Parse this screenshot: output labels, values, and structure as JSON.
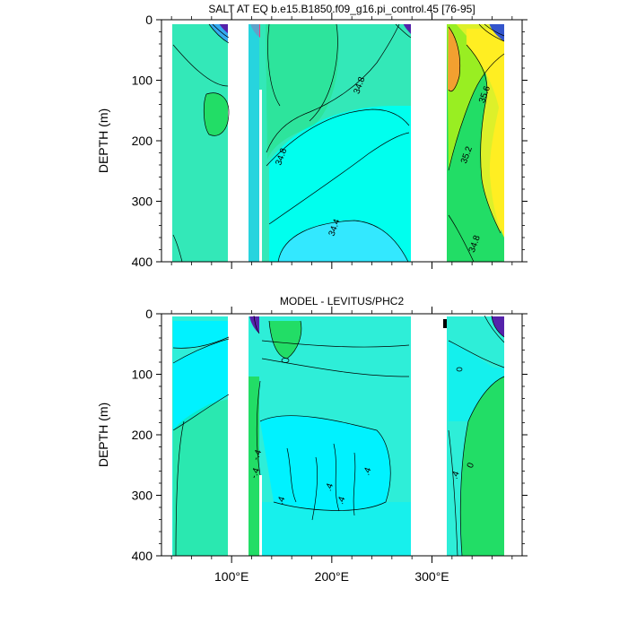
{
  "chart_data": [
    {
      "type": "contour",
      "title": "SALT AT EQ b.e15.B1850.f09_g16.pi_control.45 [76-95]",
      "xlabel": "",
      "ylabel": "DEPTH (m)",
      "xlim": [
        30,
        390
      ],
      "ylim": [
        400,
        0
      ],
      "y_ticks": [
        0,
        100,
        200,
        300,
        400
      ],
      "x_ticks": [
        100,
        200,
        300
      ],
      "x_tick_labels": [
        "100°E",
        "200°E",
        "300°E"
      ],
      "land_gaps_lon": [
        [
          97,
          118
        ],
        [
          132,
          133
        ],
        [
          280,
          315
        ]
      ],
      "contour_labels": [
        {
          "text": "34.8",
          "lon": 230,
          "depth": 110
        },
        {
          "text": "34.8",
          "lon": 152,
          "depth": 228
        },
        {
          "text": "34.4",
          "lon": 205,
          "depth": 345
        },
        {
          "text": "35.6",
          "lon": 355,
          "depth": 125
        },
        {
          "text": "35.2",
          "lon": 337,
          "depth": 225
        },
        {
          "text": "34.8",
          "lon": 345,
          "depth": 372
        }
      ],
      "colors": {
        "deep": "#00ffee",
        "mid": "#33e8b8",
        "high": "#22dd66",
        "yellow": "#ffee22",
        "orange": "#f2a030",
        "purple": "#5522aa"
      }
    },
    {
      "type": "contour",
      "title": "MODEL - LEVITUS/PHC2",
      "xlabel": "",
      "ylabel": "DEPTH (m)",
      "xlim": [
        30,
        390
      ],
      "ylim": [
        400,
        0
      ],
      "y_ticks": [
        0,
        100,
        200,
        300,
        400
      ],
      "x_ticks": [
        100,
        200,
        300
      ],
      "x_tick_labels": [
        "100°E",
        "200°E",
        "300°E"
      ],
      "land_gaps_lon": [
        [
          97,
          118
        ],
        [
          132,
          133
        ],
        [
          280,
          315
        ]
      ],
      "contour_labels": [
        {
          "text": "-.4",
          "lon": 128,
          "depth": 235
        },
        {
          "text": "-.4",
          "lon": 126,
          "depth": 265
        },
        {
          "text": ".4",
          "lon": 152,
          "depth": 310
        },
        {
          "text": ".4",
          "lon": 200,
          "depth": 288
        },
        {
          "text": ".4",
          "lon": 212,
          "depth": 310
        },
        {
          "text": ".4",
          "lon": 238,
          "depth": 262
        },
        {
          "text": ".4",
          "lon": 326,
          "depth": 268
        },
        {
          "text": "0",
          "lon": 341,
          "depth": 252
        }
      ],
      "colors": {
        "base": "#2eeed8",
        "cyan": "#00f2ff",
        "green": "#22dd66",
        "purple": "#5522aa"
      }
    }
  ]
}
